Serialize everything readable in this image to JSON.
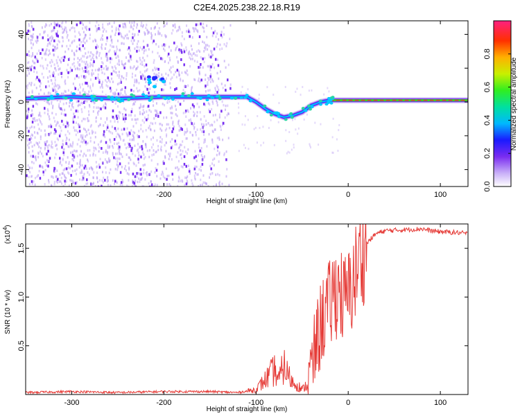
{
  "title": "C2E4.2025.238.22.18.R19",
  "colors": {
    "snr_line": "#e53935",
    "scatter_base": "#8a4df0",
    "ridge_core": "#e8283a"
  },
  "chart_data": [
    {
      "type": "heatmap",
      "name": "spectrogram",
      "xlabel": "Height of straight line (km)",
      "ylabel": "Frequency (Hz)",
      "xlim": [
        -350,
        130
      ],
      "ylim": [
        -50,
        48
      ],
      "xticks": [
        -300,
        -200,
        -100,
        0,
        100
      ],
      "yticks": [
        -40,
        -20,
        0,
        20,
        40
      ],
      "ridge": {
        "description_points_x": [
          -350,
          -300,
          -250,
          -200,
          -150,
          -130,
          -110,
          -100,
          -90,
          -80,
          -70,
          -60,
          -50,
          -40,
          -30,
          -20,
          -10,
          0,
          20,
          60,
          100,
          130
        ],
        "frequency_hz": [
          2,
          3,
          2,
          3,
          3,
          3,
          3,
          0,
          -4,
          -7,
          -9,
          -8,
          -6,
          -2,
          0,
          1,
          1,
          1,
          1,
          1,
          1,
          1
        ]
      },
      "colorbar": {
        "label": "Normalized spectral amplitude",
        "ticks": [
          "0.0",
          "0.2",
          "0.4",
          "0.6",
          "0.8"
        ],
        "range": [
          0,
          1
        ]
      }
    },
    {
      "type": "line",
      "name": "snr",
      "xlabel": "Height of straight line (km)",
      "ylabel": "SNR (10 * v/v)",
      "multiplier_label": "(x10",
      "multiplier_exp": "4",
      "xlim": [
        -350,
        130
      ],
      "ylim": [
        0,
        1.75
      ],
      "xticks": [
        -300,
        -200,
        -100,
        0,
        100
      ],
      "yticks": [
        "0.5",
        "1.0",
        "1.5"
      ],
      "y_tick_values": [
        0.5,
        1.0,
        1.5
      ],
      "series": [
        {
          "name": "SNR",
          "x": [
            -350,
            -300,
            -250,
            -200,
            -150,
            -120,
            -100,
            -95,
            -90,
            -85,
            -80,
            -75,
            -70,
            -65,
            -60,
            -55,
            -50,
            -45,
            -40,
            -35,
            -30,
            -25,
            -20,
            -15,
            -10,
            -5,
            0,
            5,
            10,
            15,
            20,
            30,
            40,
            60,
            80,
            90,
            100,
            120,
            130
          ],
          "values": [
            0.02,
            0.03,
            0.02,
            0.03,
            0.03,
            0.02,
            0.05,
            0.1,
            0.15,
            0.2,
            0.25,
            0.15,
            0.3,
            0.2,
            0.12,
            0.1,
            0.05,
            0.1,
            0.25,
            0.5,
            0.7,
            0.85,
            0.9,
            1.05,
            1.1,
            0.95,
            1.0,
            1.15,
            1.3,
            1.45,
            1.55,
            1.65,
            1.68,
            1.69,
            1.7,
            1.68,
            1.67,
            1.66,
            1.65
          ]
        }
      ]
    }
  ]
}
